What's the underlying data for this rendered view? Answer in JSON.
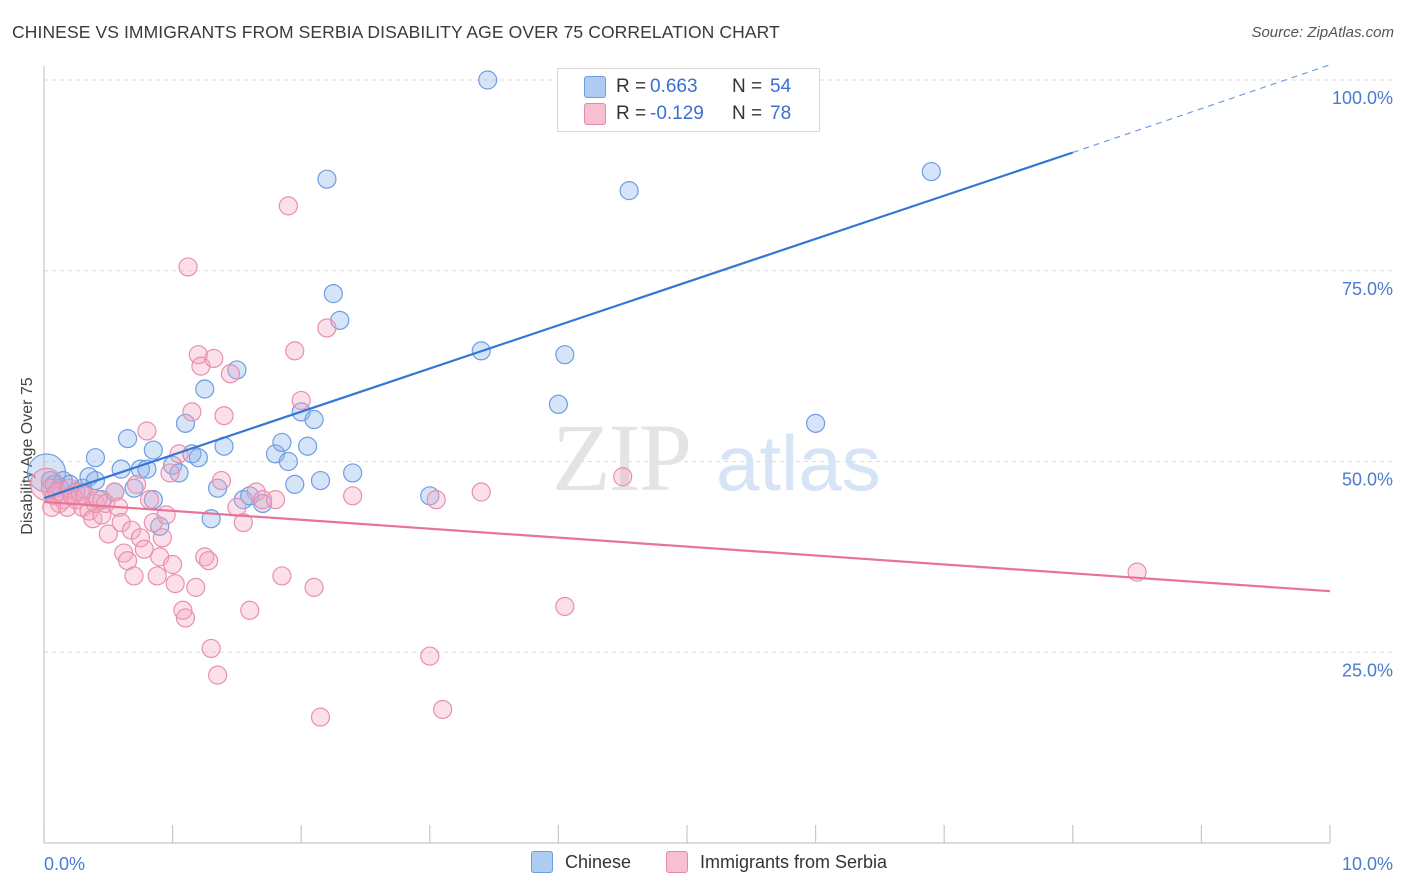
{
  "header": {
    "title": "CHINESE VS IMMIGRANTS FROM SERBIA DISABILITY AGE OVER 75 CORRELATION CHART",
    "source": "Source: ZipAtlas.com"
  },
  "watermark": {
    "part1": "ZIP",
    "part2": "atlas"
  },
  "legend": {
    "r_label": "R =",
    "n_label": "N =",
    "rows": [
      {
        "r": "0.663",
        "n": "54",
        "fill": "#aecbf2",
        "stroke": "#6f9be0"
      },
      {
        "r": "-0.129",
        "n": "78",
        "fill": "#f7c0d0",
        "stroke": "#e88aa7"
      }
    ]
  },
  "colors": {
    "blue_line": "#3575d6",
    "pink_line": "#e8739a",
    "blue_fill": "rgba(137,178,236,0.35)",
    "blue_stroke": "#6d9de2",
    "pink_fill": "rgba(244,166,191,0.35)",
    "pink_stroke": "#e98fae",
    "tick_label": "#4a7bd0",
    "grid": "#dcdcdc"
  },
  "chart_data": {
    "type": "scatter",
    "title": "CHINESE VS IMMIGRANTS FROM SERBIA DISABILITY AGE OVER 75 CORRELATION CHART",
    "xlabel": "",
    "ylabel": "Disability Age Over 75",
    "xlim": [
      0,
      10
    ],
    "ylim": [
      0,
      100
    ],
    "x_tick_labels": [
      "0.0%",
      "10.0%"
    ],
    "y_tick_labels": [
      "25.0%",
      "50.0%",
      "75.0%",
      "100.0%"
    ],
    "y_ticks": [
      25,
      50,
      75,
      100
    ],
    "grid": true,
    "legend_position": "top-center",
    "series": [
      {
        "name": "Chinese",
        "color": "#6d9de2",
        "trend": {
          "x_start": 0,
          "y_start": 45.2,
          "x_solid_end": 8.0,
          "y_solid_end": 90.5,
          "x_end": 10,
          "y_end": 102
        },
        "points": [
          [
            0.02,
            48.5
          ],
          [
            0.05,
            47.5
          ],
          [
            0.08,
            47
          ],
          [
            0.12,
            46.5
          ],
          [
            0.15,
            47.5
          ],
          [
            0.2,
            47
          ],
          [
            0.25,
            46
          ],
          [
            0.3,
            46.5
          ],
          [
            0.35,
            48
          ],
          [
            0.4,
            47.5
          ],
          [
            0.4,
            50.5
          ],
          [
            0.45,
            45
          ],
          [
            0.55,
            46
          ],
          [
            0.6,
            49
          ],
          [
            0.65,
            53
          ],
          [
            0.7,
            46.5
          ],
          [
            0.75,
            49
          ],
          [
            0.8,
            49
          ],
          [
            0.85,
            45
          ],
          [
            0.85,
            51.5
          ],
          [
            0.9,
            41.5
          ],
          [
            1.0,
            49.5
          ],
          [
            1.05,
            48.5
          ],
          [
            1.1,
            55
          ],
          [
            1.15,
            51
          ],
          [
            1.2,
            50.5
          ],
          [
            1.25,
            59.5
          ],
          [
            1.3,
            42.5
          ],
          [
            1.35,
            46.5
          ],
          [
            1.4,
            52
          ],
          [
            1.5,
            62
          ],
          [
            1.55,
            45
          ],
          [
            1.6,
            45.5
          ],
          [
            1.7,
            44.5
          ],
          [
            1.8,
            51
          ],
          [
            1.85,
            52.5
          ],
          [
            1.9,
            50
          ],
          [
            1.95,
            47
          ],
          [
            2.0,
            56.5
          ],
          [
            2.05,
            52
          ],
          [
            2.1,
            55.5
          ],
          [
            2.15,
            47.5
          ],
          [
            2.2,
            87
          ],
          [
            2.25,
            72
          ],
          [
            2.3,
            68.5
          ],
          [
            2.4,
            48.5
          ],
          [
            3.0,
            45.5
          ],
          [
            3.4,
            64.5
          ],
          [
            3.45,
            100
          ],
          [
            4.0,
            57.5
          ],
          [
            4.05,
            64
          ],
          [
            4.55,
            85.5
          ],
          [
            6.0,
            55
          ],
          [
            6.9,
            88
          ]
        ]
      },
      {
        "name": "Immigrants from Serbia",
        "color": "#e98fae",
        "trend": {
          "x_start": 0,
          "y_start": 44.7,
          "x_end": 10,
          "y_end": 33.0
        },
        "points": [
          [
            0.02,
            47
          ],
          [
            0.05,
            46.5
          ],
          [
            0.08,
            45.5
          ],
          [
            0.1,
            46
          ],
          [
            0.12,
            44.5
          ],
          [
            0.15,
            45
          ],
          [
            0.18,
            44
          ],
          [
            0.2,
            46.5
          ],
          [
            0.22,
            45.5
          ],
          [
            0.25,
            45
          ],
          [
            0.28,
            46
          ],
          [
            0.3,
            44
          ],
          [
            0.32,
            45.5
          ],
          [
            0.35,
            43.5
          ],
          [
            0.38,
            42.5
          ],
          [
            0.4,
            44.5
          ],
          [
            0.42,
            45
          ],
          [
            0.45,
            43
          ],
          [
            0.48,
            44.5
          ],
          [
            0.5,
            40.5
          ],
          [
            0.55,
            46
          ],
          [
            0.58,
            44
          ],
          [
            0.6,
            42
          ],
          [
            0.62,
            38
          ],
          [
            0.65,
            37
          ],
          [
            0.68,
            41
          ],
          [
            0.7,
            35
          ],
          [
            0.72,
            47
          ],
          [
            0.75,
            40
          ],
          [
            0.78,
            38.5
          ],
          [
            0.8,
            54
          ],
          [
            0.82,
            45
          ],
          [
            0.85,
            42
          ],
          [
            0.88,
            35
          ],
          [
            0.9,
            37.5
          ],
          [
            0.92,
            40
          ],
          [
            0.95,
            43
          ],
          [
            0.98,
            48.5
          ],
          [
            1.0,
            36.5
          ],
          [
            1.02,
            34
          ],
          [
            1.05,
            51
          ],
          [
            1.08,
            30.5
          ],
          [
            1.1,
            29.5
          ],
          [
            1.12,
            75.5
          ],
          [
            1.15,
            56.5
          ],
          [
            1.18,
            33.5
          ],
          [
            1.2,
            64
          ],
          [
            1.22,
            62.5
          ],
          [
            1.25,
            37.5
          ],
          [
            1.28,
            37
          ],
          [
            1.3,
            25.5
          ],
          [
            1.32,
            63.5
          ],
          [
            1.35,
            22
          ],
          [
            1.38,
            47.5
          ],
          [
            1.4,
            56
          ],
          [
            1.45,
            61.5
          ],
          [
            1.5,
            44
          ],
          [
            1.55,
            42
          ],
          [
            1.6,
            30.5
          ],
          [
            1.65,
            46
          ],
          [
            1.7,
            45
          ],
          [
            1.8,
            45
          ],
          [
            1.85,
            35
          ],
          [
            1.9,
            83.5
          ],
          [
            1.95,
            64.5
          ],
          [
            2.0,
            58
          ],
          [
            2.1,
            33.5
          ],
          [
            2.15,
            16.5
          ],
          [
            2.2,
            67.5
          ],
          [
            2.4,
            45.5
          ],
          [
            3.0,
            24.5
          ],
          [
            3.05,
            45
          ],
          [
            3.1,
            17.5
          ],
          [
            3.4,
            46
          ],
          [
            4.05,
            31
          ],
          [
            4.5,
            48
          ],
          [
            8.5,
            35.5
          ],
          [
            0.06,
            44
          ]
        ]
      }
    ]
  },
  "bottom_legend": {
    "items": [
      {
        "label": "Chinese",
        "fill": "#aecbf2",
        "stroke": "#6f9be0"
      },
      {
        "label": "Immigrants from Serbia",
        "fill": "#f7c0d0",
        "stroke": "#e88aa7"
      }
    ]
  }
}
